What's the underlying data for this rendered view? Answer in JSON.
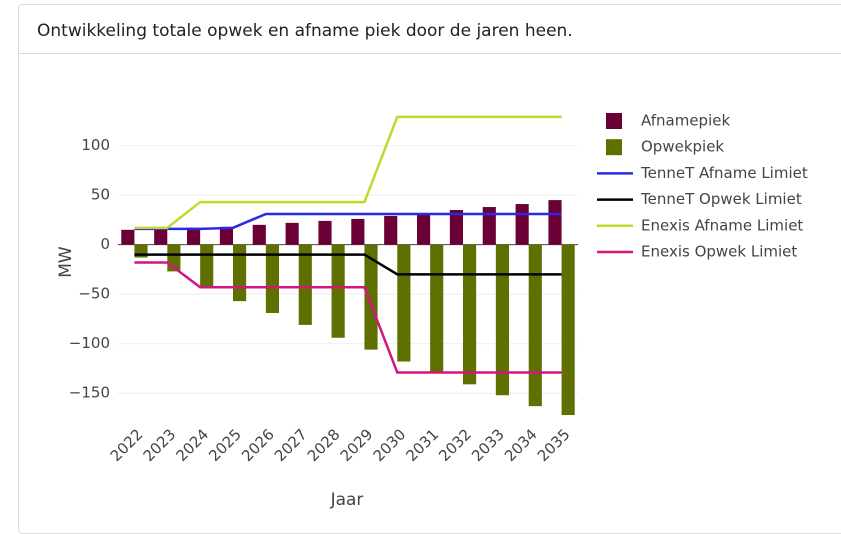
{
  "chart_data": {
    "type": "bar",
    "title": "Ontwikkeling totale opwek en afname piek door de jaren heen.",
    "x_label": "Jaar",
    "y_label": "MW",
    "categories": [
      "2022",
      "2023",
      "2024",
      "2025",
      "2026",
      "2027",
      "2028",
      "2029",
      "2030",
      "2031",
      "2032",
      "2033",
      "2034",
      "2035"
    ],
    "series": [
      {
        "name": "Afnamepiek",
        "type": "bar",
        "color": "#6b0037",
        "values": [
          15,
          16,
          17,
          18,
          20,
          22,
          24,
          26,
          29,
          32,
          35,
          38,
          41,
          45
        ]
      },
      {
        "name": "Opwekpiek",
        "type": "bar",
        "color": "#5f7000",
        "values": [
          -13,
          -27,
          -43,
          -57,
          -69,
          -81,
          -94,
          -106,
          -118,
          -129,
          -141,
          -152,
          -163,
          -172
        ]
      },
      {
        "name": "TenneT Afname Limiet",
        "type": "line",
        "color": "#2a2ae0",
        "values": [
          16,
          16,
          16,
          17,
          31,
          31,
          31,
          31,
          31,
          31,
          31,
          31,
          31,
          31
        ]
      },
      {
        "name": "TenneT Opwek Limiet",
        "type": "line",
        "color": "#000000",
        "values": [
          -10,
          -10,
          -10,
          -10,
          -10,
          -10,
          -10,
          -10,
          -30,
          -30,
          -30,
          -30,
          -30,
          -30
        ]
      },
      {
        "name": "Enexis Afname Limiet",
        "type": "line",
        "color": "#c3d82a",
        "values": [
          17,
          17,
          43,
          43,
          43,
          43,
          43,
          43,
          129,
          129,
          129,
          129,
          129,
          129
        ]
      },
      {
        "name": "Enexis Opwek Limiet",
        "type": "line",
        "color": "#d4157f",
        "values": [
          -18,
          -18,
          -43,
          -43,
          -43,
          -43,
          -43,
          -43,
          -129,
          -129,
          -129,
          -129,
          -129,
          -129
        ]
      }
    ],
    "ylim": [
      -175,
      140
    ],
    "yticks": [
      {
        "value": -150,
        "label": "−150"
      },
      {
        "value": -100,
        "label": "−100"
      },
      {
        "value": -50,
        "label": "−50"
      },
      0,
      50,
      100
    ],
    "grid": true,
    "legend": "right"
  }
}
